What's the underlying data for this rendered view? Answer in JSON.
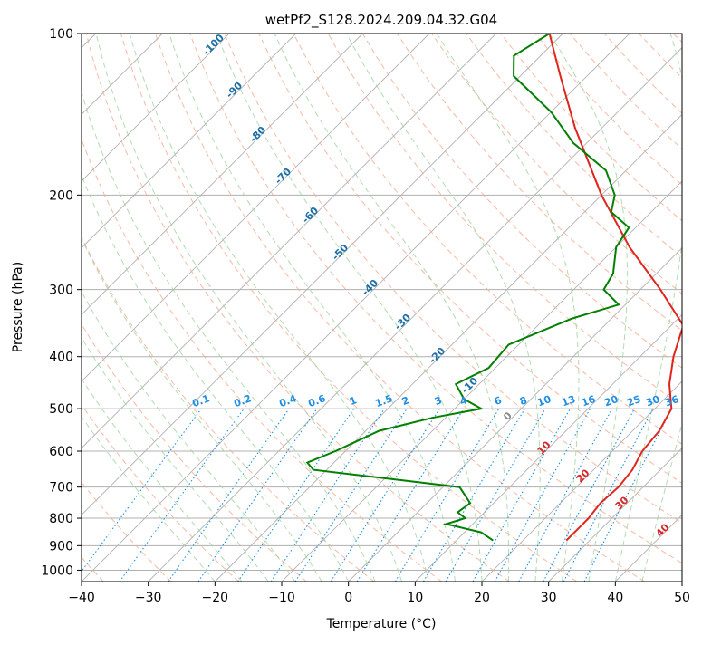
{
  "chart_data": {
    "type": "line",
    "subtype": "skew-t log-p diagram",
    "title": "wetPf2_S128.2024.209.04.32.G04",
    "xlabel": "Temperature (°C)",
    "ylabel": "Pressure (hPa)",
    "xlim": [
      -40,
      50
    ],
    "ylim": [
      1050,
      100
    ],
    "y_scale": "log",
    "grid": true,
    "x_ticks": [
      "−40",
      "−30",
      "−20",
      "−10",
      "0",
      "10",
      "20",
      "30",
      "40",
      "50"
    ],
    "y_ticks": [
      "100",
      "200",
      "300",
      "400",
      "500",
      "600",
      "700",
      "800",
      "900",
      "1000"
    ],
    "series": [
      {
        "key": "temperature",
        "color": "#e0241c",
        "points": [
          {
            "p": 880,
            "t": 26.5
          },
          {
            "p": 850,
            "t": 26.5
          },
          {
            "p": 800,
            "t": 26.5
          },
          {
            "p": 750,
            "t": 26.0
          },
          {
            "p": 700,
            "t": 26.3
          },
          {
            "p": 650,
            "t": 25.8
          },
          {
            "p": 600,
            "t": 24.5
          },
          {
            "p": 550,
            "t": 24.0
          },
          {
            "p": 500,
            "t": 22.5
          },
          {
            "p": 450,
            "t": 18.5
          },
          {
            "p": 400,
            "t": 15.0
          },
          {
            "p": 350,
            "t": 11.8
          },
          {
            "p": 300,
            "t": 3.0
          },
          {
            "p": 250,
            "t": -8.0
          },
          {
            "p": 200,
            "t": -20.0
          },
          {
            "p": 150,
            "t": -34.0
          },
          {
            "p": 120,
            "t": -44.0
          },
          {
            "p": 100,
            "t": -52.0
          }
        ]
      },
      {
        "key": "dewpoint",
        "color": "#008000",
        "points": [
          {
            "p": 880,
            "t": 15.5
          },
          {
            "p": 850,
            "t": 12.5
          },
          {
            "p": 820,
            "t": 6.0
          },
          {
            "p": 800,
            "t": 8.0
          },
          {
            "p": 780,
            "t": 6.0
          },
          {
            "p": 750,
            "t": 6.5
          },
          {
            "p": 700,
            "t": 2.5
          },
          {
            "p": 680,
            "t": -7.0
          },
          {
            "p": 650,
            "t": -22.0
          },
          {
            "p": 630,
            "t": -24.0
          },
          {
            "p": 600,
            "t": -21.5
          },
          {
            "p": 550,
            "t": -18.0
          },
          {
            "p": 520,
            "t": -12.0
          },
          {
            "p": 500,
            "t": -6.0
          },
          {
            "p": 480,
            "t": -10.0
          },
          {
            "p": 450,
            "t": -13.5
          },
          {
            "p": 420,
            "t": -11.0
          },
          {
            "p": 380,
            "t": -11.5
          },
          {
            "p": 340,
            "t": -6.0
          },
          {
            "p": 320,
            "t": -1.0
          },
          {
            "p": 300,
            "t": -5.5
          },
          {
            "p": 280,
            "t": -6.5
          },
          {
            "p": 250,
            "t": -10.0
          },
          {
            "p": 230,
            "t": -11.0
          },
          {
            "p": 215,
            "t": -16.0
          },
          {
            "p": 200,
            "t": -18.0
          },
          {
            "p": 180,
            "t": -23.0
          },
          {
            "p": 160,
            "t": -32.0
          },
          {
            "p": 140,
            "t": -40.0
          },
          {
            "p": 120,
            "t": -51.0
          },
          {
            "p": 110,
            "t": -54.0
          },
          {
            "p": 100,
            "t": -52.0
          }
        ]
      }
    ],
    "dry_adiabat_labels": [
      "-100",
      "-90",
      "-80",
      "-70",
      "-60",
      "-50",
      "-40",
      "-30",
      "-20",
      "-10",
      "0",
      "10",
      "20",
      "30",
      "40"
    ],
    "mixing_ratio_labels": [
      "0.1",
      "0.2",
      "0.4",
      "0.6",
      "1",
      "1.5",
      "2",
      "3",
      "4",
      "6",
      "8",
      "10",
      "13",
      "16",
      "20",
      "25",
      "30",
      "36"
    ],
    "line_colors": {
      "isotherm": "#b0b0b0",
      "isobar": "#b0b0b0",
      "dry_adiabat": "#f5a88c",
      "moist_adiabat": "#9dd39d",
      "mixing_ratio": "#1f8fe5",
      "temperature_scale_label": "#1f6fa6",
      "warm_label": "#d62728",
      "mixing_label": "#1f8fe5"
    },
    "dry_adiabat_label_temps": [
      -100,
      -90,
      -80,
      -70,
      -60,
      -50,
      -40,
      -30,
      -20,
      -10,
      0,
      10,
      20,
      30,
      40
    ],
    "mixing_ratio_values": [
      0.1,
      0.2,
      0.4,
      0.6,
      1,
      1.5,
      2,
      3,
      4,
      6,
      8,
      10,
      13,
      16,
      20,
      25,
      30,
      36
    ]
  }
}
